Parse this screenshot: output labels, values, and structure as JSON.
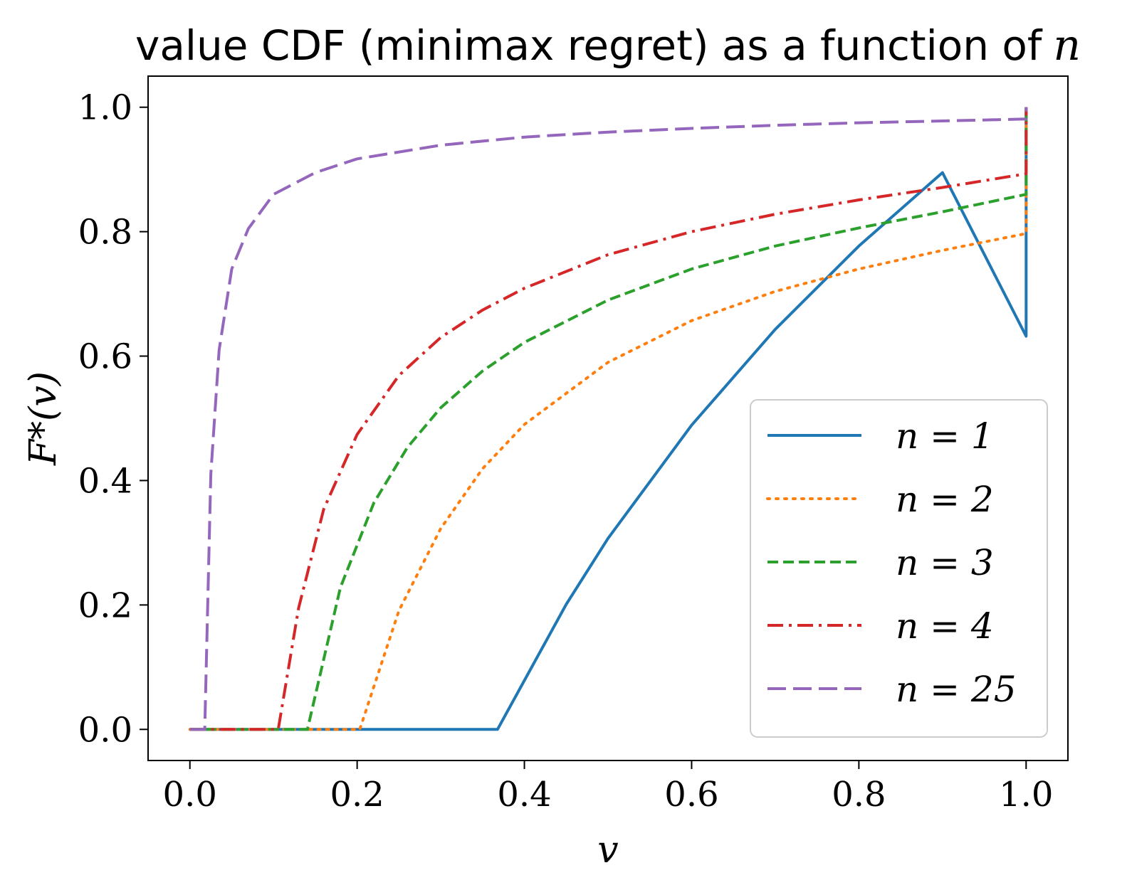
{
  "chart_data": {
    "type": "line",
    "title": "value CDF (minimax regret) as a function of",
    "title_var": "n",
    "xlabel": "v",
    "ylabel": "F*(v)",
    "xlim": [
      -0.05,
      1.05
    ],
    "ylim": [
      -0.05,
      1.05
    ],
    "xticks": [
      0.0,
      0.2,
      0.4,
      0.6,
      0.8,
      1.0
    ],
    "xtick_labels": [
      "0.0",
      "0.2",
      "0.4",
      "0.6",
      "0.8",
      "1.0"
    ],
    "yticks": [
      0.0,
      0.2,
      0.4,
      0.6,
      0.8,
      1.0
    ],
    "ytick_labels": [
      "0.0",
      "0.2",
      "0.4",
      "0.6",
      "0.8",
      "1.0"
    ],
    "legend_position": "lower-right",
    "series": [
      {
        "name": "n = 1",
        "n": 1,
        "color": "#1f77b4",
        "style": "solid",
        "x": [
          0.0,
          0.3679,
          0.45,
          0.5,
          0.6,
          0.7,
          0.8,
          0.9,
          1.0,
          1.0
        ],
        "y": [
          0.0,
          0.0,
          0.201,
          0.307,
          0.489,
          0.643,
          0.777,
          0.895,
          0.632,
          1.0
        ]
      },
      {
        "name": "n = 2",
        "n": 2,
        "color": "#ff7f0e",
        "style": "dotted",
        "x": [
          0.0,
          0.2031,
          0.25,
          0.3,
          0.35,
          0.4,
          0.5,
          0.6,
          0.7,
          0.8,
          0.9,
          1.0,
          1.0
        ],
        "y": [
          0.0,
          0.0,
          0.191,
          0.323,
          0.419,
          0.49,
          0.59,
          0.657,
          0.704,
          0.74,
          0.77,
          0.797,
          1.0
        ]
      },
      {
        "name": "n = 3",
        "n": 3,
        "color": "#2ca02c",
        "style": "dashed",
        "x": [
          0.0,
          0.1405,
          0.18,
          0.22,
          0.26,
          0.3,
          0.35,
          0.4,
          0.5,
          0.6,
          0.7,
          0.8,
          0.9,
          1.0,
          1.0
        ],
        "y": [
          0.0,
          0.0,
          0.228,
          0.364,
          0.453,
          0.517,
          0.576,
          0.622,
          0.69,
          0.74,
          0.777,
          0.806,
          0.832,
          0.86,
          1.0
        ]
      },
      {
        "name": "n = 4",
        "n": 4,
        "color": "#d62728",
        "style": "dashdot",
        "x": [
          0.0,
          0.1056,
          0.13,
          0.16,
          0.2,
          0.25,
          0.3,
          0.35,
          0.4,
          0.5,
          0.6,
          0.7,
          0.8,
          0.9,
          1.0,
          1.0
        ],
        "y": [
          0.0,
          0.0,
          0.195,
          0.354,
          0.474,
          0.569,
          0.63,
          0.674,
          0.709,
          0.763,
          0.8,
          0.828,
          0.851,
          0.871,
          0.893,
          1.0
        ]
      },
      {
        "name": "n = 25",
        "n": 25,
        "color": "#9467bd",
        "style": "longdash",
        "x": [
          0.0,
          0.0178,
          0.025,
          0.035,
          0.05,
          0.07,
          0.1,
          0.15,
          0.2,
          0.3,
          0.4,
          0.5,
          0.6,
          0.7,
          0.8,
          0.9,
          1.0,
          1.0
        ],
        "y": [
          0.0,
          0.0,
          0.41,
          0.61,
          0.74,
          0.805,
          0.86,
          0.895,
          0.917,
          0.939,
          0.952,
          0.96,
          0.966,
          0.971,
          0.975,
          0.978,
          0.981,
          1.0
        ]
      }
    ]
  }
}
